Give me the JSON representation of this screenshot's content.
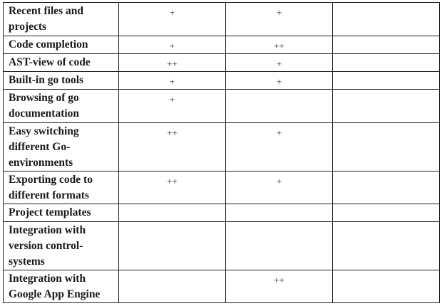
{
  "rows": [
    {
      "feature": "Recent files and projects",
      "c1": "+",
      "c2": "+",
      "c3": ""
    },
    {
      "feature": "Code completion",
      "c1": "+",
      "c2": "++",
      "c3": ""
    },
    {
      "feature": "AST-view of code",
      "c1": "++",
      "c2": "+",
      "c3": ""
    },
    {
      "feature": "Built-in go tools",
      "c1": "+",
      "c2": "+",
      "c3": ""
    },
    {
      "feature": "Browsing of go documentation",
      "c1": "+",
      "c2": "",
      "c3": ""
    },
    {
      "feature": "Easy switching different Go-environments",
      "c1": "++",
      "c2": "+",
      "c3": ""
    },
    {
      "feature": "Exporting code to different formats",
      "c1": "++",
      "c2": "+",
      "c3": ""
    },
    {
      "feature": "Project templates",
      "c1": "",
      "c2": "",
      "c3": ""
    },
    {
      "feature": "Integration with version control-systems",
      "c1": "",
      "c2": "",
      "c3": ""
    },
    {
      "feature": "Integration with Google App Engine",
      "c1": "",
      "c2": "++",
      "c3": ""
    }
  ]
}
